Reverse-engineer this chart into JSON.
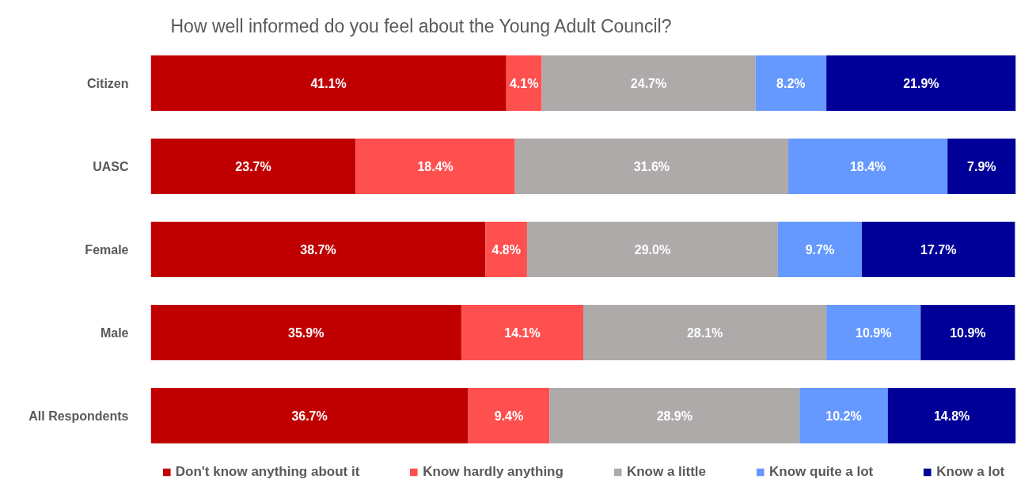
{
  "chart_data": {
    "type": "bar",
    "orientation": "horizontal",
    "stacked": true,
    "title": "How well informed do you feel about the Young Adult Council?",
    "categories": [
      "Citizen",
      "UASC",
      "Female",
      "Male",
      "All Respondents"
    ],
    "xlim": [
      0,
      100
    ],
    "tick_labels": "y",
    "legend": "bottom",
    "series": [
      {
        "name": "Don't know anything about it",
        "color": "#c00000",
        "values": [
          41.1,
          23.7,
          38.7,
          35.9,
          36.7
        ],
        "value_labels": [
          "41.1%",
          "23.7%",
          "38.7%",
          "35.9%",
          "36.7%"
        ]
      },
      {
        "name": "Know hardly anything",
        "color": "#ff5050",
        "values": [
          4.1,
          18.4,
          4.8,
          14.1,
          9.4
        ],
        "value_labels": [
          "4.1%",
          "18.4%",
          "4.8%",
          "14.1%",
          "9.4%"
        ]
      },
      {
        "name": "Know a little",
        "color": "#aeaaaa",
        "values": [
          24.7,
          31.6,
          29.0,
          28.1,
          28.9
        ],
        "value_labels": [
          "24.7%",
          "31.6%",
          "29.0%",
          "28.1%",
          "28.9%"
        ]
      },
      {
        "name": "Know quite a lot",
        "color": "#6699ff",
        "values": [
          8.2,
          18.4,
          9.7,
          10.9,
          10.2
        ],
        "value_labels": [
          "8.2%",
          "18.4%",
          "9.7%",
          "10.9%",
          "10.2%"
        ]
      },
      {
        "name": "Know a lot",
        "color": "#000099",
        "values": [
          21.9,
          7.9,
          17.7,
          10.9,
          14.8
        ],
        "value_labels": [
          "21.9%",
          "7.9%",
          "17.7%",
          "10.9%",
          "14.8%"
        ]
      }
    ]
  }
}
